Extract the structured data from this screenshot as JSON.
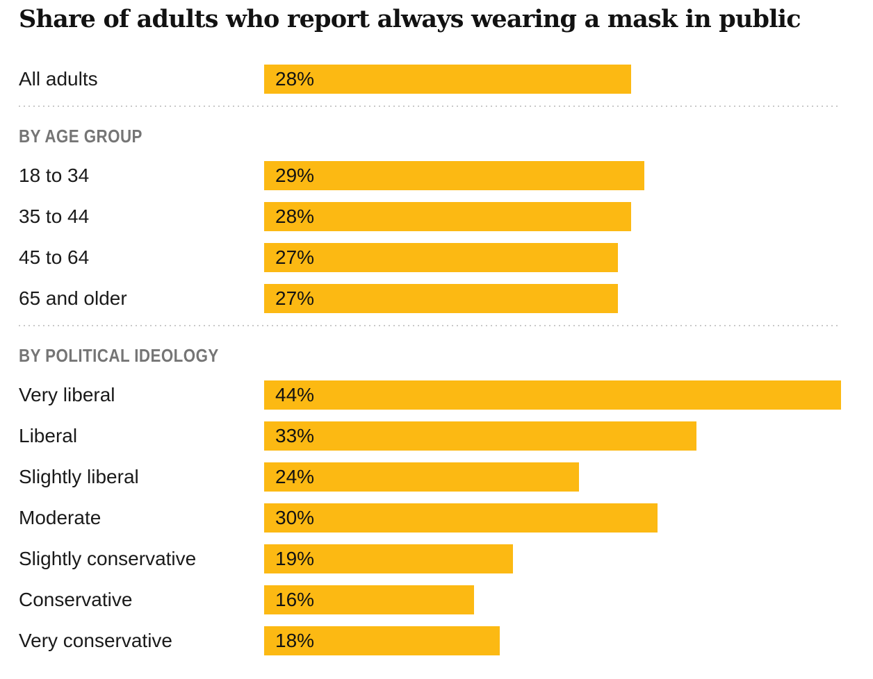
{
  "title": "Share of adults who report always wearing a mask in public",
  "colors": {
    "bar": "#FCB913",
    "section_header": "#757575",
    "text": "#141414",
    "separator": "#C8C8C8"
  },
  "chart_data": {
    "type": "bar",
    "orientation": "horizontal",
    "title": "Share of adults who report always wearing a mask in public",
    "value_unit": "percent",
    "xlim": [
      0,
      44
    ],
    "grid": false,
    "legend": false,
    "sections": [
      {
        "header": "",
        "rows": [
          {
            "label": "All adults",
            "value": 28,
            "value_label": "28%"
          }
        ]
      },
      {
        "header": "BY AGE GROUP",
        "rows": [
          {
            "label": "18 to 34",
            "value": 29,
            "value_label": "29%"
          },
          {
            "label": "35 to 44",
            "value": 28,
            "value_label": "28%"
          },
          {
            "label": "45 to 64",
            "value": 27,
            "value_label": "27%"
          },
          {
            "label": "65 and older",
            "value": 27,
            "value_label": "27%"
          }
        ]
      },
      {
        "header": "BY POLITICAL IDEOLOGY",
        "rows": [
          {
            "label": "Very liberal",
            "value": 44,
            "value_label": "44%"
          },
          {
            "label": "Liberal",
            "value": 33,
            "value_label": "33%"
          },
          {
            "label": "Slightly liberal",
            "value": 24,
            "value_label": "24%"
          },
          {
            "label": "Moderate",
            "value": 30,
            "value_label": "30%"
          },
          {
            "label": "Slightly conservative",
            "value": 19,
            "value_label": "19%"
          },
          {
            "label": "Conservative",
            "value": 16,
            "value_label": "16%"
          },
          {
            "label": "Very conservative",
            "value": 18,
            "value_label": "18%"
          }
        ]
      }
    ]
  }
}
